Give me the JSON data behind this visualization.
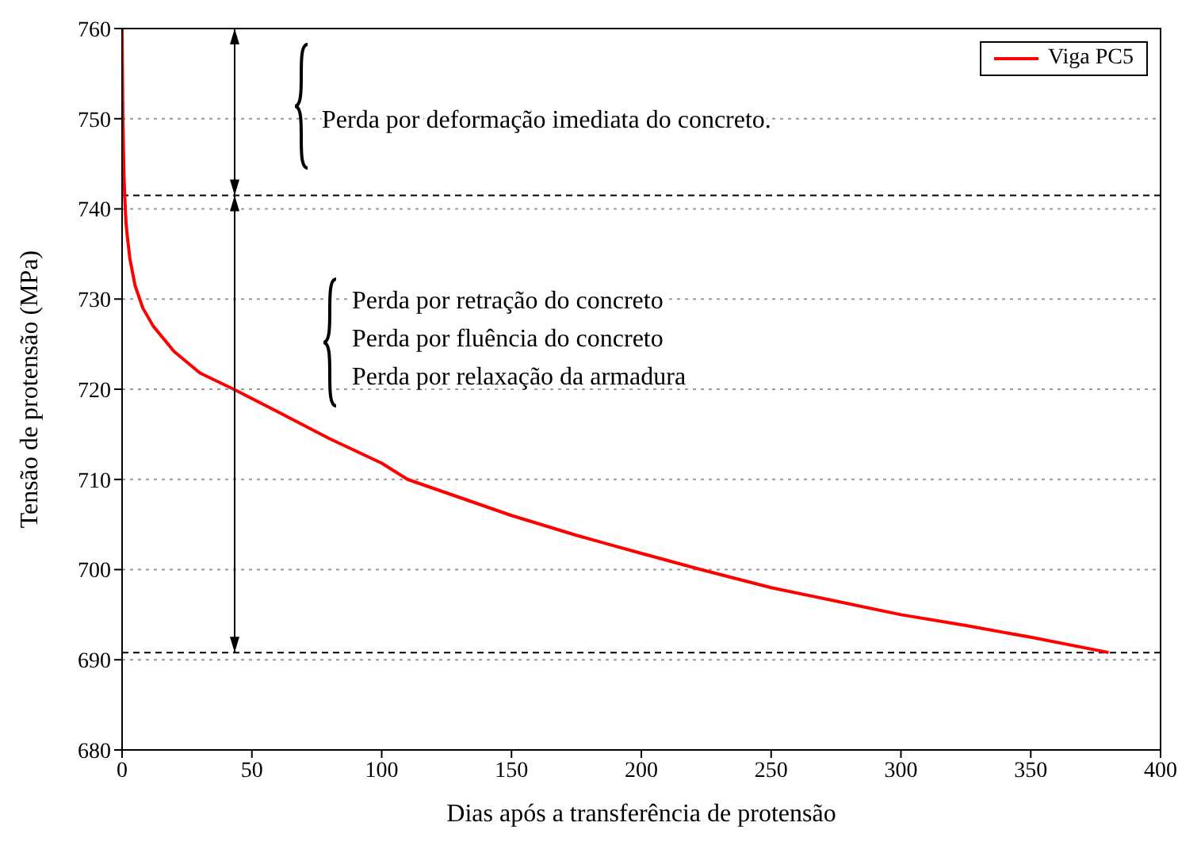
{
  "chart_data": {
    "type": "line",
    "xlabel": "Dias após a transferência de protensão",
    "ylabel": "Tensão de protensão (MPa)",
    "x": [
      0,
      0.3,
      0.7,
      1,
      1.5,
      2,
      3,
      5,
      8,
      12,
      20,
      30,
      43,
      60,
      80,
      100,
      110,
      130,
      150,
      175,
      200,
      223,
      250,
      275,
      300,
      325,
      350,
      380
    ],
    "series": [
      {
        "name": "Viga PC5",
        "color": "#ff0000",
        "values": [
          760,
          750,
          744,
          741.5,
          738.5,
          737,
          734.5,
          731.5,
          729,
          727,
          724.2,
          721.8,
          720,
          717.5,
          714.5,
          711.8,
          710,
          708,
          706,
          703.8,
          701.8,
          700,
          698,
          696.5,
          695,
          693.8,
          692.5,
          690.8
        ]
      }
    ],
    "xlim": [
      0,
      400
    ],
    "xticks": [
      0,
      50,
      100,
      150,
      200,
      250,
      300,
      350,
      400
    ],
    "ylim": [
      680,
      760
    ],
    "yticks": [
      680,
      690,
      700,
      710,
      720,
      730,
      740,
      750,
      760
    ],
    "grid": "y",
    "legend": "top right",
    "marker": "none",
    "line_style": "solid",
    "ref_lines": [
      {
        "axis": "y",
        "value": 741.5,
        "color": "#000000",
        "line_style": "dashed"
      },
      {
        "axis": "y",
        "value": 690.8,
        "color": "#000000",
        "line_style": "dashed"
      }
    ],
    "annotations": [
      "Perda por deformação imediata do concreto.",
      "Perda por retração do concreto",
      "Perda por fluência do concreto",
      "Perda por relaxação da armadura"
    ]
  }
}
